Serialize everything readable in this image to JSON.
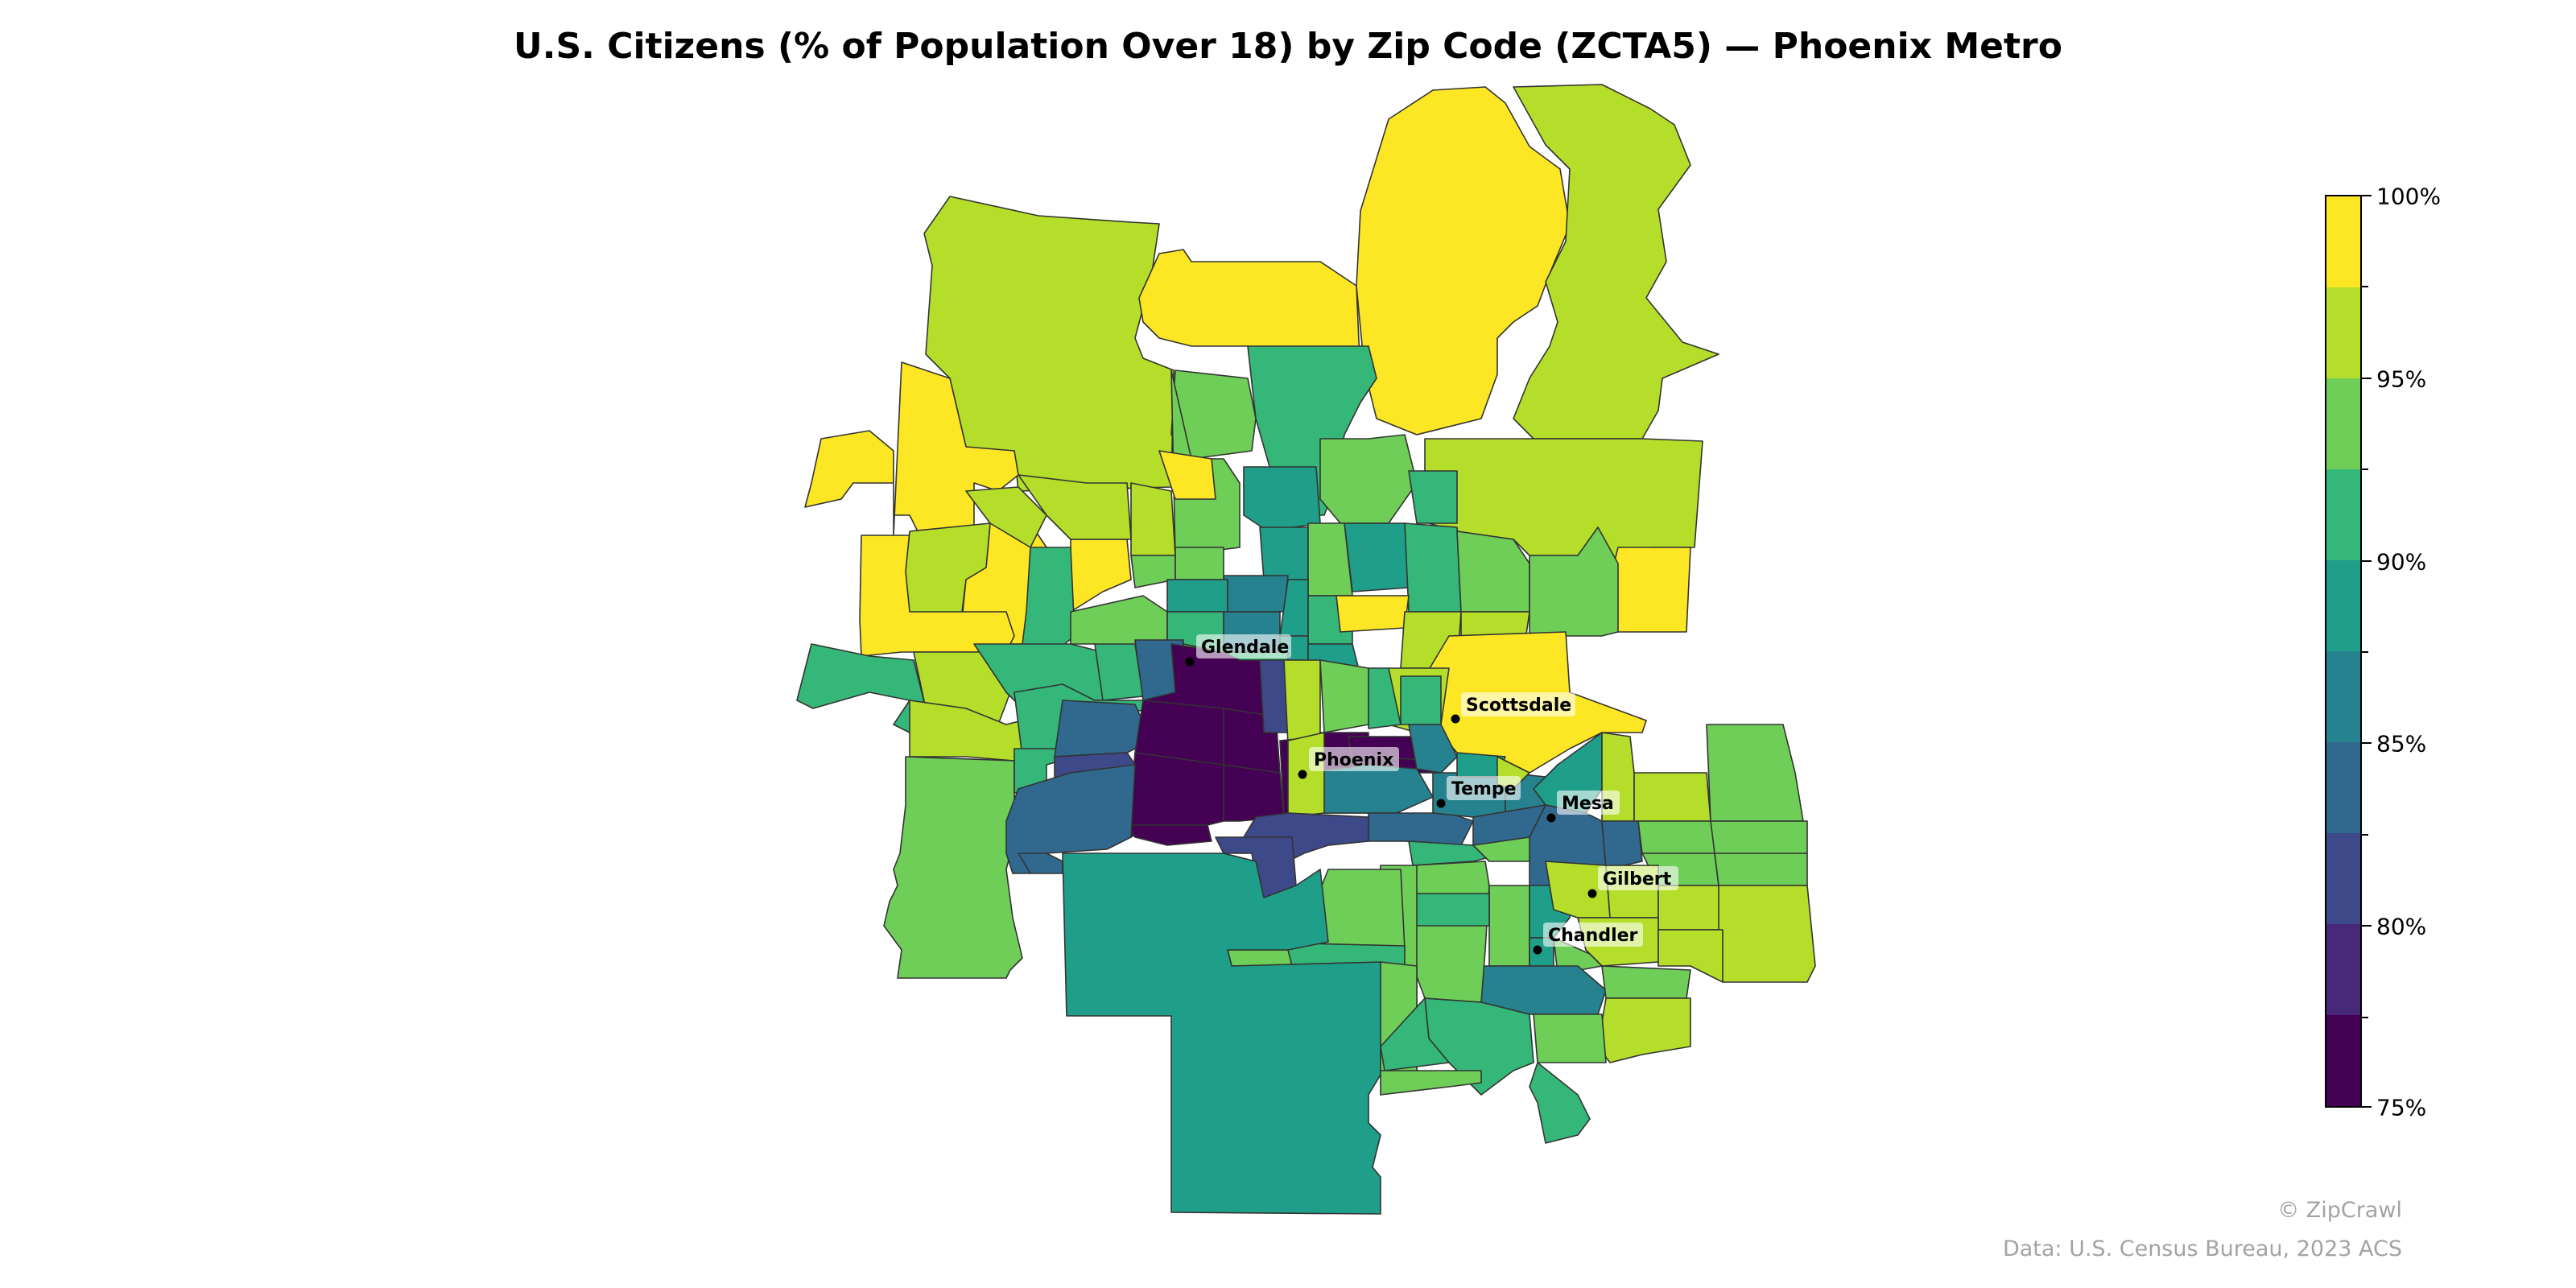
{
  "title": "U.S. Citizens (% of Population Over 18) by Zip Code (ZCTA5) — Phoenix Metro",
  "legend": {
    "colors": [
      "#fde725",
      "#b5de2b",
      "#6ece58",
      "#35b779",
      "#1f9e89",
      "#26828e",
      "#31688e",
      "#3e4989",
      "#482878",
      "#440154"
    ],
    "labels": [
      "100%",
      "95%",
      "90%",
      "85%",
      "80%",
      "75%"
    ]
  },
  "cities": [
    {
      "name": "Glendale"
    },
    {
      "name": "Scottsdale"
    },
    {
      "name": "Phoenix"
    },
    {
      "name": "Tempe"
    },
    {
      "name": "Mesa"
    },
    {
      "name": "Gilbert"
    },
    {
      "name": "Chandler"
    }
  ],
  "credits": {
    "brand": "© ZipCrawl",
    "source": "Data: U.S. Census Bureau, 2023 ACS"
  }
}
